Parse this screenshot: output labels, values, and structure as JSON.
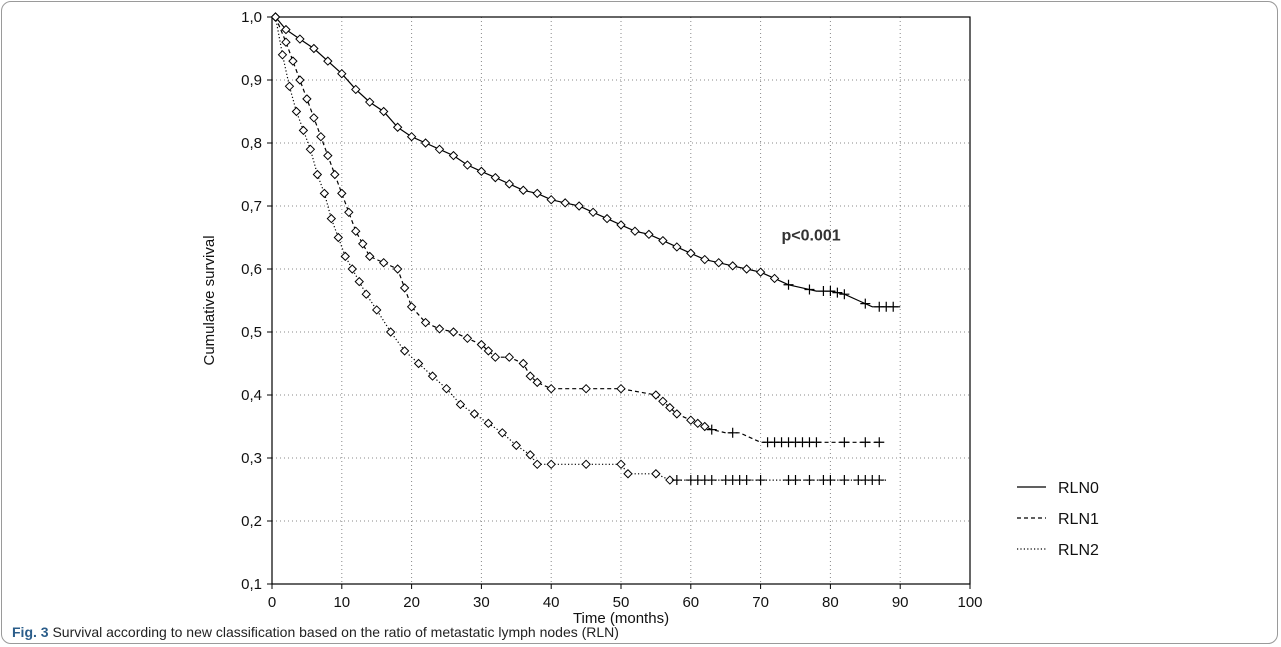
{
  "figure": {
    "caption_label": "Fig. 3",
    "caption_text": " Survival according to new classification based on the ratio of metastatic lymph nodes (RLN)"
  },
  "chart_data": {
    "type": "line",
    "xlabel": "Time (months)",
    "ylabel": "Cumulative survival",
    "xlim": [
      0,
      100
    ],
    "ylim": [
      0.1,
      1.0
    ],
    "x_ticks": [
      "0",
      "10",
      "20",
      "30",
      "40",
      "50",
      "60",
      "70",
      "80",
      "90",
      "100"
    ],
    "y_ticks": [
      "0,1",
      "0,2",
      "0,3",
      "0,4",
      "0,5",
      "0,6",
      "0,7",
      "0,8",
      "0,9",
      "1,0"
    ],
    "grid": true,
    "annotation": "p<0.001",
    "legend_position": "outside-right-bottom",
    "series": [
      {
        "name": "RLN0",
        "style": "solid",
        "x": [
          0.5,
          2,
          4,
          6,
          8,
          10,
          12,
          14,
          16,
          18,
          20,
          22,
          24,
          26,
          28,
          30,
          32,
          34,
          36,
          38,
          40,
          42,
          44,
          46,
          48,
          50,
          52,
          54,
          56,
          58,
          60,
          62,
          64,
          66,
          68,
          70,
          72,
          74,
          76,
          78,
          80,
          82,
          84,
          86,
          88,
          90
        ],
        "y": [
          1.0,
          0.98,
          0.965,
          0.95,
          0.93,
          0.91,
          0.885,
          0.865,
          0.85,
          0.825,
          0.81,
          0.8,
          0.79,
          0.78,
          0.765,
          0.755,
          0.745,
          0.735,
          0.725,
          0.72,
          0.71,
          0.705,
          0.7,
          0.69,
          0.68,
          0.67,
          0.66,
          0.655,
          0.645,
          0.635,
          0.625,
          0.615,
          0.61,
          0.605,
          0.6,
          0.595,
          0.585,
          0.575,
          0.57,
          0.565,
          0.565,
          0.56,
          0.55,
          0.54,
          0.54,
          0.54
        ],
        "censored_x": [
          74,
          77,
          79,
          80,
          81,
          82,
          85,
          87,
          88,
          89
        ]
      },
      {
        "name": "RLN1",
        "style": "dashed",
        "x": [
          0.5,
          2,
          3,
          4,
          5,
          6,
          7,
          8,
          9,
          10,
          11,
          12,
          13,
          14,
          16,
          18,
          19,
          20,
          22,
          24,
          26,
          28,
          30,
          31,
          32,
          34,
          36,
          37,
          38,
          40,
          45,
          50,
          55,
          56,
          57,
          58,
          60,
          61,
          62,
          63,
          65,
          67,
          69,
          70,
          72,
          75,
          80,
          85,
          87
        ],
        "y": [
          1.0,
          0.96,
          0.93,
          0.9,
          0.87,
          0.84,
          0.81,
          0.78,
          0.75,
          0.72,
          0.69,
          0.66,
          0.64,
          0.62,
          0.61,
          0.6,
          0.57,
          0.54,
          0.515,
          0.505,
          0.5,
          0.49,
          0.48,
          0.47,
          0.46,
          0.46,
          0.45,
          0.43,
          0.42,
          0.41,
          0.41,
          0.41,
          0.4,
          0.39,
          0.38,
          0.37,
          0.36,
          0.355,
          0.35,
          0.345,
          0.34,
          0.34,
          0.33,
          0.325,
          0.325,
          0.325,
          0.325,
          0.325,
          0.325
        ],
        "censored_x": [
          63,
          66,
          71,
          72,
          73,
          74,
          75,
          76,
          77,
          78,
          82,
          85,
          87
        ]
      },
      {
        "name": "RLN2",
        "style": "dotted",
        "x": [
          0.5,
          1.5,
          2.5,
          3.5,
          4.5,
          5.5,
          6.5,
          7.5,
          8.5,
          9.5,
          10.5,
          11.5,
          12.5,
          13.5,
          15,
          17,
          19,
          21,
          23,
          25,
          27,
          29,
          31,
          33,
          35,
          37,
          38,
          40,
          45,
          50,
          51,
          55,
          57,
          60,
          65,
          70,
          75,
          80,
          85,
          88
        ],
        "y": [
          1.0,
          0.94,
          0.89,
          0.85,
          0.82,
          0.79,
          0.75,
          0.72,
          0.68,
          0.65,
          0.62,
          0.6,
          0.58,
          0.56,
          0.535,
          0.5,
          0.47,
          0.45,
          0.43,
          0.41,
          0.385,
          0.37,
          0.355,
          0.34,
          0.32,
          0.305,
          0.29,
          0.29,
          0.29,
          0.29,
          0.275,
          0.275,
          0.265,
          0.265,
          0.265,
          0.265,
          0.265,
          0.265,
          0.265,
          0.265
        ],
        "censored_x": [
          58,
          60,
          61,
          62,
          63,
          65,
          66,
          67,
          68,
          70,
          74,
          75,
          77,
          79,
          80,
          82,
          84,
          85,
          86,
          87
        ]
      }
    ]
  }
}
